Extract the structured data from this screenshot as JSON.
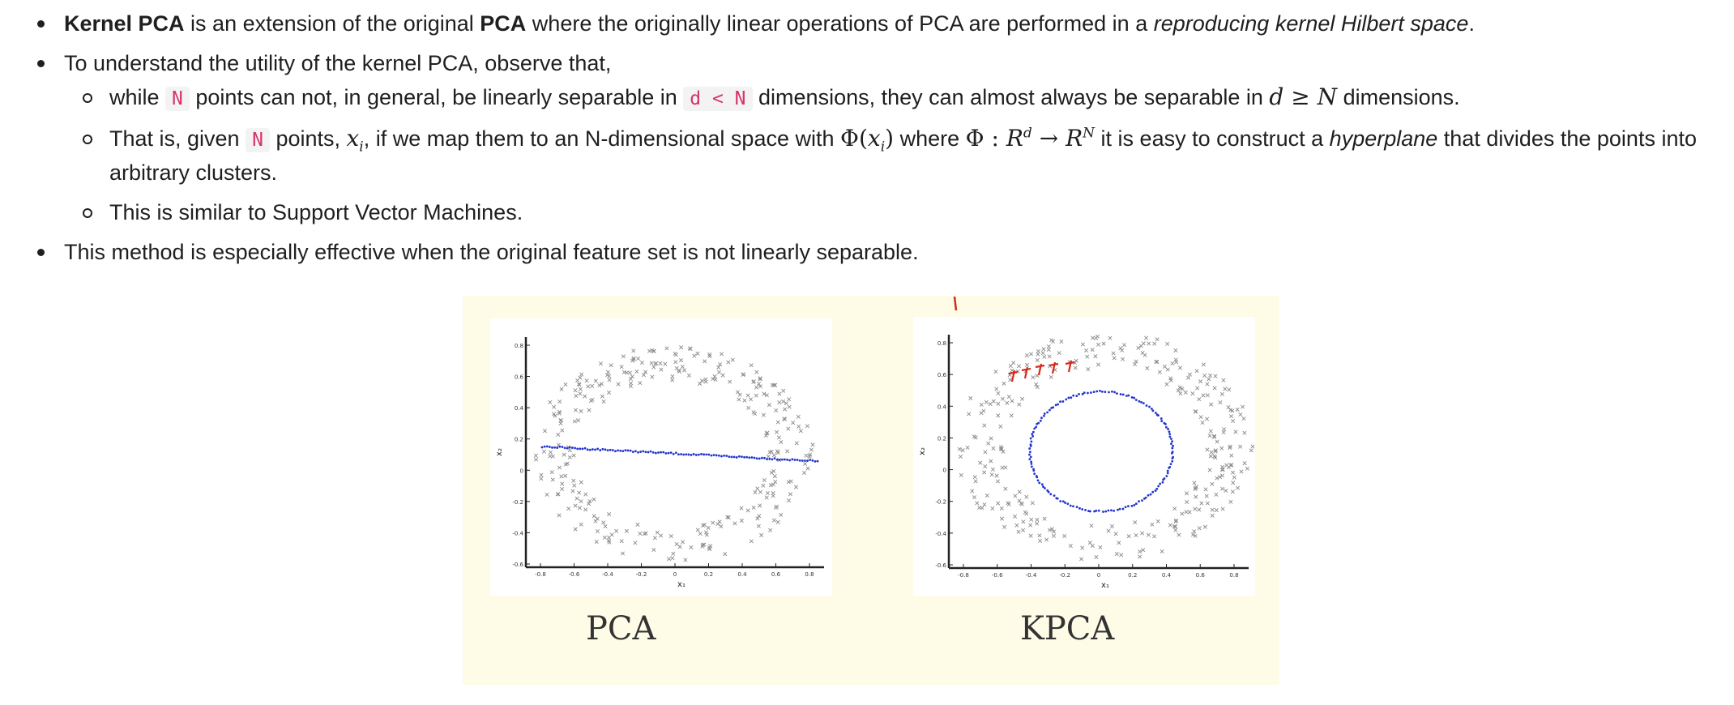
{
  "bullets": {
    "b1": {
      "term1": "Kernel PCA",
      "text1": " is an extension of the original ",
      "term2": "PCA",
      "text2": " where the originally linear operations of PCA are performed in a ",
      "em": "reproducing kernel Hilbert space",
      "text3": "."
    },
    "b2": {
      "text": "To understand the utility of the kernel PCA, observe that,",
      "s1": {
        "t1": "while ",
        "code1": "N",
        "t2": " points can not, in general, be linearly separable in ",
        "code2": "d < N",
        "t3": " dimensions, they can almost always be separable in ",
        "math_d": "d",
        "math_geq": " ≥ ",
        "math_N": "N",
        "t4": " dimensions."
      },
      "s2": {
        "t1": "That is, given ",
        "code1": "N",
        "t2": " points, ",
        "math_x": "x",
        "math_i": "i",
        "t3": ", if we map them to an N-dimensional space with ",
        "m_phi": "Φ",
        "m_open": "(",
        "m_x": "x",
        "m_i": "i",
        "m_close": ")",
        "t4": " where ",
        "m2_phi": "Φ",
        "m2_colon": " : ",
        "m2_R1": "R",
        "m2_d": "d",
        "m2_arrow": " → ",
        "m2_R2": "R",
        "m2_N": "N",
        "t5": " it is easy to construct a ",
        "em": "hyperplane",
        "t6": " that divides the points into arbitrary clusters."
      },
      "s3": {
        "text": "This is similar to Support Vector Machines."
      }
    },
    "b3": {
      "text": "This method is especially effective when the original feature set is not linearly separable."
    }
  },
  "figure": {
    "background": "#fefce6",
    "left_label": "PCA",
    "right_label": "KPCA",
    "x_axis_label": "x₁",
    "y_axis_label": "x₂",
    "x_ticks": [
      "-0.8",
      "-0.6",
      "-0.4",
      "-0.2",
      "0",
      "0.2",
      "0.4",
      "0.6",
      "0.8"
    ],
    "y_ticks": [
      "0.8",
      "0.6",
      "0.4",
      "0.2",
      "0",
      "-0.2",
      "-0.4",
      "-0.6"
    ],
    "point_color": "#8a8a8a",
    "projection_color": "#2233cc",
    "highlight_color": "#d62a1c"
  }
}
